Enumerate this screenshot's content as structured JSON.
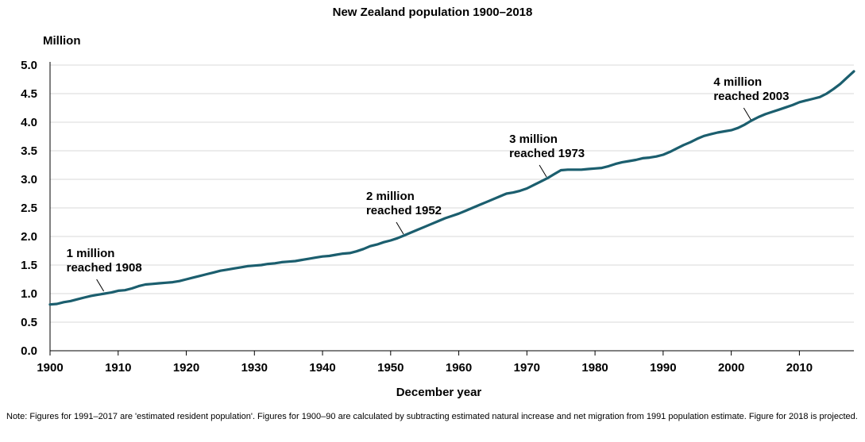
{
  "chart_data": {
    "type": "line",
    "title": "New Zealand population 1900–2018",
    "ylabel": "Million",
    "xlabel": "December year",
    "xlim": [
      1900,
      2018
    ],
    "ylim": [
      0,
      5
    ],
    "grid": true,
    "x_ticks": [
      "1900",
      "1910",
      "1920",
      "1930",
      "1940",
      "1950",
      "1960",
      "1970",
      "1980",
      "1990",
      "2000",
      "2010"
    ],
    "y_ticks": [
      "0.0",
      "0.5",
      "1.0",
      "1.5",
      "2.0",
      "2.5",
      "3.0",
      "3.5",
      "4.0",
      "4.5",
      "5.0"
    ],
    "line_color": "#1b5e6e",
    "series": [
      {
        "x": [
          1900,
          1901,
          1902,
          1903,
          1904,
          1905,
          1906,
          1907,
          1908,
          1909,
          1910,
          1911,
          1912,
          1913,
          1914,
          1915,
          1916,
          1917,
          1918,
          1919,
          1920,
          1921,
          1922,
          1923,
          1924,
          1925,
          1926,
          1927,
          1928,
          1929,
          1930,
          1931,
          1932,
          1933,
          1934,
          1935,
          1936,
          1937,
          1938,
          1939,
          1940,
          1941,
          1942,
          1943,
          1944,
          1945,
          1946,
          1947,
          1948,
          1949,
          1950,
          1951,
          1952,
          1953,
          1954,
          1955,
          1956,
          1957,
          1958,
          1959,
          1960,
          1961,
          1962,
          1963,
          1964,
          1965,
          1966,
          1967,
          1968,
          1969,
          1970,
          1971,
          1972,
          1973,
          1974,
          1975,
          1976,
          1977,
          1978,
          1979,
          1980,
          1981,
          1982,
          1983,
          1984,
          1985,
          1986,
          1987,
          1988,
          1989,
          1990,
          1991,
          1992,
          1993,
          1994,
          1995,
          1996,
          1997,
          1998,
          1999,
          2000,
          2001,
          2002,
          2003,
          2004,
          2005,
          2006,
          2007,
          2008,
          2009,
          2010,
          2011,
          2012,
          2013,
          2014,
          2015,
          2016,
          2017,
          2018
        ],
        "values": [
          0.81,
          0.82,
          0.85,
          0.87,
          0.9,
          0.93,
          0.96,
          0.98,
          1.0,
          1.02,
          1.05,
          1.06,
          1.09,
          1.13,
          1.16,
          1.17,
          1.18,
          1.19,
          1.2,
          1.22,
          1.25,
          1.28,
          1.31,
          1.34,
          1.37,
          1.4,
          1.42,
          1.44,
          1.46,
          1.48,
          1.49,
          1.5,
          1.52,
          1.53,
          1.55,
          1.56,
          1.57,
          1.59,
          1.61,
          1.63,
          1.65,
          1.66,
          1.68,
          1.7,
          1.71,
          1.74,
          1.78,
          1.83,
          1.86,
          1.9,
          1.93,
          1.97,
          2.02,
          2.07,
          2.12,
          2.17,
          2.22,
          2.27,
          2.32,
          2.36,
          2.4,
          2.45,
          2.5,
          2.55,
          2.6,
          2.65,
          2.7,
          2.75,
          2.77,
          2.8,
          2.84,
          2.9,
          2.96,
          3.02,
          3.09,
          3.16,
          3.17,
          3.17,
          3.17,
          3.18,
          3.19,
          3.2,
          3.23,
          3.27,
          3.3,
          3.32,
          3.34,
          3.37,
          3.38,
          3.4,
          3.43,
          3.48,
          3.54,
          3.6,
          3.65,
          3.71,
          3.76,
          3.79,
          3.82,
          3.84,
          3.86,
          3.9,
          3.96,
          4.03,
          4.09,
          4.14,
          4.18,
          4.22,
          4.26,
          4.3,
          4.35,
          4.38,
          4.41,
          4.44,
          4.5,
          4.58,
          4.67,
          4.78,
          4.89
        ]
      }
    ],
    "annotations": [
      {
        "line1": "1 million",
        "line2": "reached 1908",
        "x": 1908,
        "y": 1.0
      },
      {
        "line1": "2 million",
        "line2": "reached 1952",
        "x": 1952,
        "y": 2.0
      },
      {
        "line1": "3 million",
        "line2": "reached 1973",
        "x": 1973,
        "y": 3.0
      },
      {
        "line1": "4 million",
        "line2": "reached 2003",
        "x": 2003,
        "y": 4.0
      }
    ],
    "note": "Note: Figures for 1991–2017 are 'estimated resident population'. Figures for 1900–90 are calculated by subtracting estimated natural increase and net migration from 1991 population estimate. Figure for 2018 is projected."
  }
}
